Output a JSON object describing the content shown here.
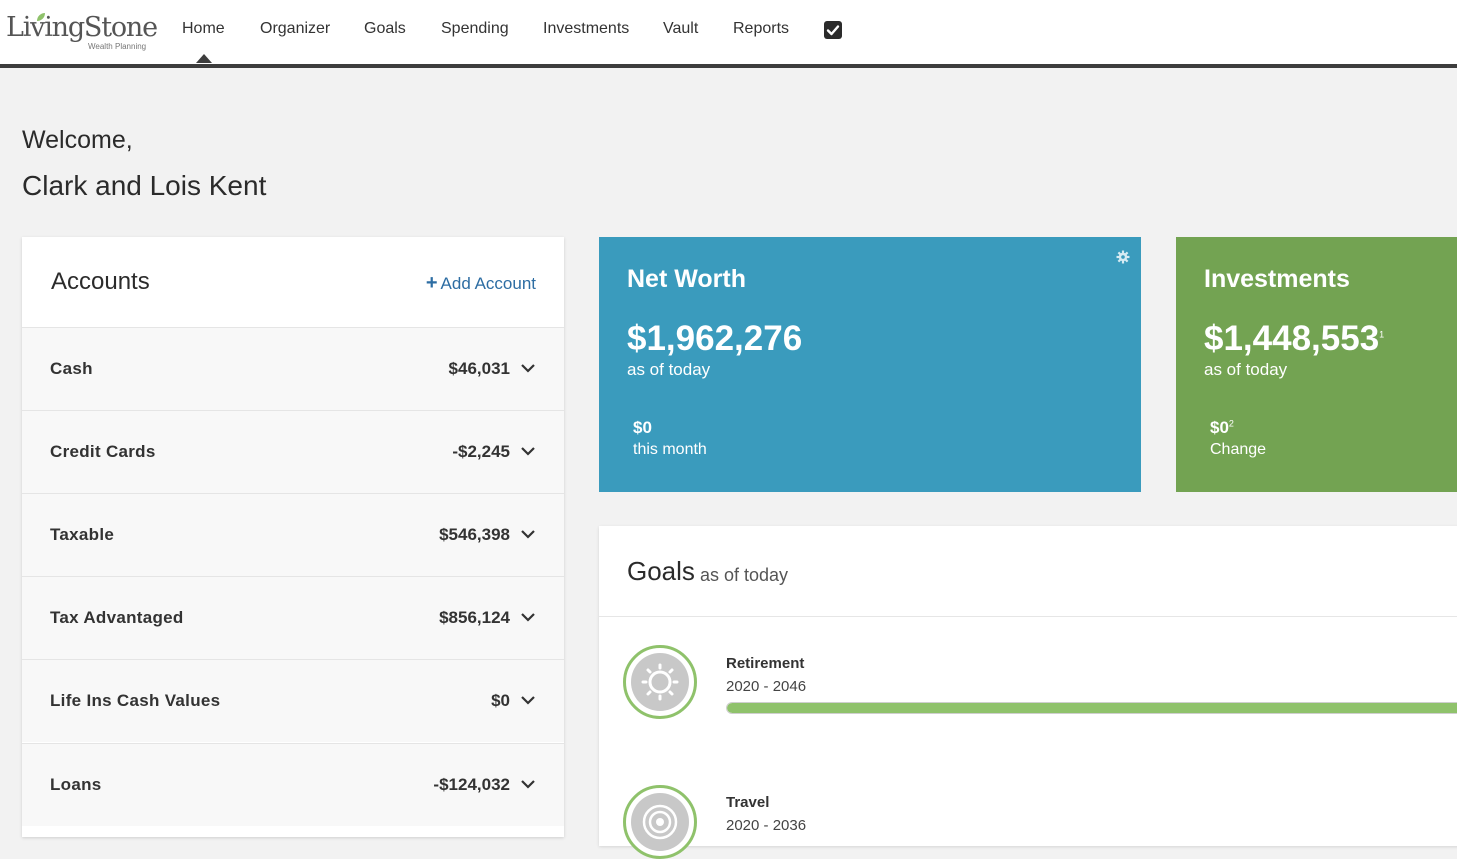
{
  "brand": {
    "name": "LivingStone",
    "tagline": "Wealth Planning"
  },
  "nav": {
    "items": [
      "Home",
      "Organizer",
      "Goals",
      "Spending",
      "Investments",
      "Vault",
      "Reports"
    ],
    "active": "Home",
    "extra_icon": "checkbox-icon"
  },
  "welcome": {
    "line1": "Welcome,",
    "line2": "Clark and Lois Kent"
  },
  "accounts": {
    "title": "Accounts",
    "add_label": "Add Account",
    "rows": [
      {
        "label": "Cash",
        "value": "$46,031"
      },
      {
        "label": "Credit Cards",
        "value": "-$2,245"
      },
      {
        "label": "Taxable",
        "value": "$546,398"
      },
      {
        "label": "Tax Advantaged",
        "value": "$856,124"
      },
      {
        "label": "Life Ins Cash Values",
        "value": "$0"
      },
      {
        "label": "Loans",
        "value": "-$124,032"
      }
    ]
  },
  "net_worth": {
    "title": "Net Worth",
    "amount": "$1,962,276",
    "as_of": "as of today",
    "sub_value": "$0",
    "sub_label": "this month",
    "color": "#3a9bbd",
    "icon": "gear-icon"
  },
  "investments": {
    "title": "Investments",
    "amount": "$1,448,553",
    "amount_note": "1",
    "as_of": "as of today",
    "sub_value": "$0",
    "sub_note": "2",
    "sub_label": "Change",
    "color": "#73a352"
  },
  "goals": {
    "title": "Goals",
    "subtitle": "as of today",
    "items": [
      {
        "name": "Retirement",
        "dates": "2020 - 2046",
        "progress": 1.0,
        "icon": "sun-icon"
      },
      {
        "name": "Travel",
        "dates": "2020 - 2036",
        "progress": null,
        "icon": "target-icon"
      }
    ]
  },
  "colors": {
    "accent_blue": "#3a9bbd",
    "accent_green": "#73a352",
    "progress_green": "#8fc26b",
    "link": "#2d6da3"
  }
}
